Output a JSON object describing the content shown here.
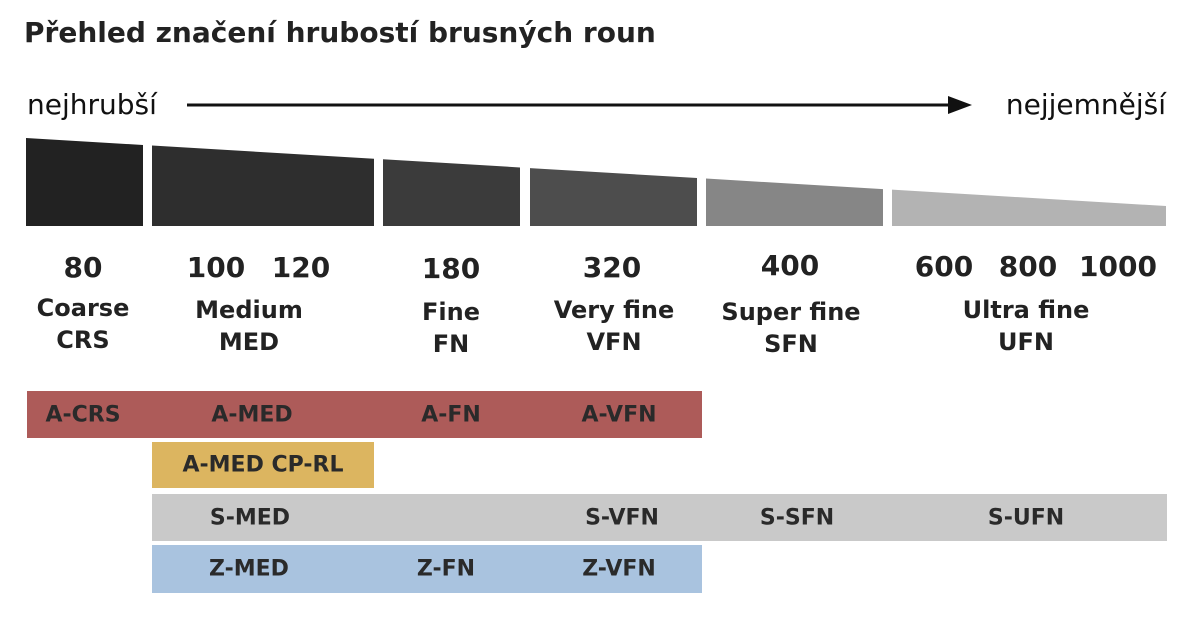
{
  "title": "Přehled značení hrubostí brusných roun",
  "scale": {
    "left_label": "nejhrubší",
    "right_label": "nejjemnější"
  },
  "grades": [
    {
      "grits": [
        "80"
      ],
      "name": "Coarse",
      "code": "CRS",
      "color": "#222222"
    },
    {
      "grits": [
        "100",
        "120"
      ],
      "name": "Medium",
      "code": "MED",
      "color": "#2e2e2e"
    },
    {
      "grits": [
        "180"
      ],
      "name": "Fine",
      "code": "FN",
      "color": "#3b3b3b"
    },
    {
      "grits": [
        "320"
      ],
      "name": "Very fine",
      "code": "VFN",
      "color": "#4d4d4d"
    },
    {
      "grits": [
        "400"
      ],
      "name": "Super fine",
      "code": "SFN",
      "color": "#868686"
    },
    {
      "grits": [
        "600",
        "800",
        "1000"
      ],
      "name": "Ultra fine",
      "code": "UFN",
      "color": "#b3b3b3"
    }
  ],
  "series": [
    {
      "color": "#ad5b59",
      "labels": [
        "A-CRS",
        "A-MED",
        "A-FN",
        "A-VFN"
      ]
    },
    {
      "color": "#dcb560",
      "labels": [
        "A-MED CP-RL"
      ]
    },
    {
      "color": "#c9c9c9",
      "labels": [
        "S-MED",
        "S-VFN",
        "S-SFN",
        "S-UFN"
      ]
    },
    {
      "color": "#a9c3df",
      "labels": [
        "Z-MED",
        "Z-FN",
        "Z-VFN"
      ]
    }
  ]
}
